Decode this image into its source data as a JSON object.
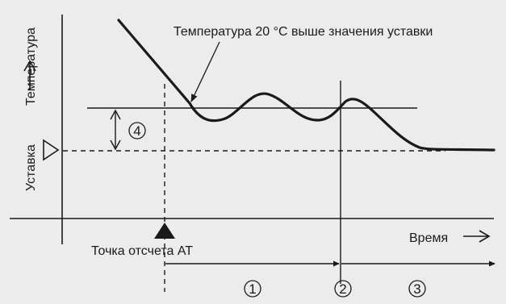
{
  "diagram": {
    "annotation": "Температура 20 °C выше значения уставки",
    "y_axis_label": "Температура",
    "setpoint_label": "Уставка",
    "time_label": "Время",
    "at_point_label": "Точка отсчета AT",
    "band_number": "4",
    "phase_numbers": [
      "1",
      "2",
      "3"
    ],
    "colors": {
      "background": "#ececec",
      "line": "#1a1a1a"
    }
  }
}
